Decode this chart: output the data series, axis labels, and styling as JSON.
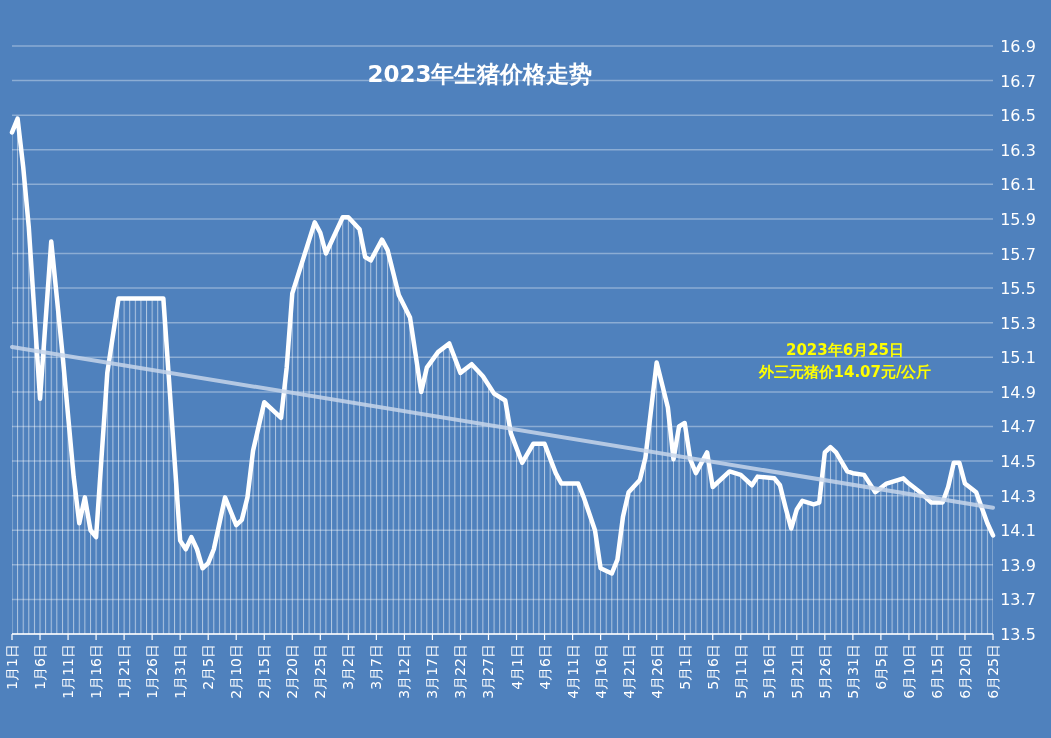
{
  "chart_data": {
    "type": "line",
    "title": "2023年生猪价格走势",
    "xlim": [
      "2023-01-01",
      "2023-06-25"
    ],
    "xticks": [
      {
        "value": "2023-01-01",
        "label": "1月1日"
      },
      {
        "value": "2023-01-06",
        "label": "1月6日"
      },
      {
        "value": "2023-01-11",
        "label": "1月11日"
      },
      {
        "value": "2023-01-16",
        "label": "1月16日"
      },
      {
        "value": "2023-01-21",
        "label": "1月21日"
      },
      {
        "value": "2023-01-26",
        "label": "1月26日"
      },
      {
        "value": "2023-01-31",
        "label": "1月31日"
      },
      {
        "value": "2023-02-05",
        "label": "2月5日"
      },
      {
        "value": "2023-02-10",
        "label": "2月10日"
      },
      {
        "value": "2023-02-15",
        "label": "2月15日"
      },
      {
        "value": "2023-02-20",
        "label": "2月20日"
      },
      {
        "value": "2023-02-25",
        "label": "2月25日"
      },
      {
        "value": "2023-03-02",
        "label": "3月2日"
      },
      {
        "value": "2023-03-07",
        "label": "3月7日"
      },
      {
        "value": "2023-03-12",
        "label": "3月12日"
      },
      {
        "value": "2023-03-17",
        "label": "3月17日"
      },
      {
        "value": "2023-03-22",
        "label": "3月22日"
      },
      {
        "value": "2023-03-27",
        "label": "3月27日"
      },
      {
        "value": "2023-04-01",
        "label": "4月1日"
      },
      {
        "value": "2023-04-06",
        "label": "4月6日"
      },
      {
        "value": "2023-04-11",
        "label": "4月11日"
      },
      {
        "value": "2023-04-16",
        "label": "4月16日"
      },
      {
        "value": "2023-04-21",
        "label": "4月21日"
      },
      {
        "value": "2023-04-26",
        "label": "4月26日"
      },
      {
        "value": "2023-05-01",
        "label": "5月1日"
      },
      {
        "value": "2023-05-06",
        "label": "5月6日"
      },
      {
        "value": "2023-05-11",
        "label": "5月11日"
      },
      {
        "value": "2023-05-16",
        "label": "5月16日"
      },
      {
        "value": "2023-05-21",
        "label": "5月21日"
      },
      {
        "value": "2023-05-26",
        "label": "5月26日"
      },
      {
        "value": "2023-05-31",
        "label": "5月31日"
      },
      {
        "value": "2023-06-05",
        "label": "6月5日"
      },
      {
        "value": "2023-06-10",
        "label": "6月10日"
      },
      {
        "value": "2023-06-15",
        "label": "6月15日"
      },
      {
        "value": "2023-06-20",
        "label": "6月20日"
      },
      {
        "value": "2023-06-25",
        "label": "6月25日"
      }
    ],
    "ylim": [
      13.5,
      16.9
    ],
    "yticks": [
      13.5,
      13.7,
      13.9,
      14.1,
      14.3,
      14.5,
      14.7,
      14.9,
      15.1,
      15.3,
      15.5,
      15.7,
      15.9,
      16.1,
      16.3,
      16.5,
      16.7,
      16.9
    ],
    "grid": "y",
    "series": [
      {
        "type": "area",
        "color": "#ffffff",
        "x": [
          "2023-01-01",
          "2023-01-02",
          "2023-01-03",
          "2023-01-04",
          "2023-01-06",
          "2023-01-08",
          "2023-01-10",
          "2023-01-12",
          "2023-01-13",
          "2023-01-14",
          "2023-01-15",
          "2023-01-16",
          "2023-01-18",
          "2023-01-20",
          "2023-01-28",
          "2023-01-31",
          "2023-02-01",
          "2023-02-02",
          "2023-02-03",
          "2023-02-04",
          "2023-02-05",
          "2023-02-06",
          "2023-02-08",
          "2023-02-10",
          "2023-02-11",
          "2023-02-12",
          "2023-02-13",
          "2023-02-15",
          "2023-02-18",
          "2023-02-19",
          "2023-02-20",
          "2023-02-24",
          "2023-02-25",
          "2023-02-26",
          "2023-03-01",
          "2023-03-02",
          "2023-03-04",
          "2023-03-05",
          "2023-03-06",
          "2023-03-08",
          "2023-03-09",
          "2023-03-11",
          "2023-03-13",
          "2023-03-15",
          "2023-03-16",
          "2023-03-18",
          "2023-03-20",
          "2023-03-22",
          "2023-03-24",
          "2023-03-26",
          "2023-03-28",
          "2023-03-30",
          "2023-03-31",
          "2023-04-02",
          "2023-04-04",
          "2023-04-06",
          "2023-04-08",
          "2023-04-09",
          "2023-04-12",
          "2023-04-13",
          "2023-04-15",
          "2023-04-16",
          "2023-04-18",
          "2023-04-19",
          "2023-04-20",
          "2023-04-21",
          "2023-04-23",
          "2023-04-24",
          "2023-04-26",
          "2023-04-28",
          "2023-04-29",
          "2023-04-30",
          "2023-05-01",
          "2023-05-02",
          "2023-05-03",
          "2023-05-05",
          "2023-05-06",
          "2023-05-09",
          "2023-05-11",
          "2023-05-13",
          "2023-05-14",
          "2023-05-17",
          "2023-05-18",
          "2023-05-19",
          "2023-05-20",
          "2023-05-21",
          "2023-05-22",
          "2023-05-24",
          "2023-05-25",
          "2023-05-26",
          "2023-05-27",
          "2023-05-28",
          "2023-05-30",
          "2023-05-31",
          "2023-06-02",
          "2023-06-04",
          "2023-06-06",
          "2023-06-08",
          "2023-06-09",
          "2023-06-10",
          "2023-06-12",
          "2023-06-14",
          "2023-06-16",
          "2023-06-17",
          "2023-06-18",
          "2023-06-19",
          "2023-06-20",
          "2023-06-22",
          "2023-06-24",
          "2023-06-25"
        ],
        "values": [
          16.4,
          16.48,
          16.2,
          15.85,
          14.86,
          15.77,
          15.12,
          14.41,
          14.14,
          14.29,
          14.1,
          14.06,
          15.01,
          15.44,
          15.44,
          14.04,
          13.99,
          14.06,
          13.99,
          13.88,
          13.91,
          13.99,
          14.29,
          14.13,
          14.16,
          14.29,
          14.56,
          14.84,
          14.75,
          15.04,
          15.47,
          15.88,
          15.82,
          15.7,
          15.91,
          15.91,
          15.84,
          15.68,
          15.66,
          15.78,
          15.72,
          15.46,
          15.33,
          14.9,
          15.04,
          15.13,
          15.18,
          15.01,
          15.06,
          14.99,
          14.89,
          14.85,
          14.66,
          14.49,
          14.6,
          14.6,
          14.43,
          14.37,
          14.37,
          14.29,
          14.1,
          13.88,
          13.85,
          13.93,
          14.18,
          14.32,
          14.39,
          14.52,
          15.07,
          14.81,
          14.51,
          14.7,
          14.72,
          14.51,
          14.43,
          14.55,
          14.35,
          14.44,
          14.42,
          14.36,
          14.41,
          14.4,
          14.36,
          14.23,
          14.11,
          14.22,
          14.27,
          14.25,
          14.26,
          14.55,
          14.58,
          14.55,
          14.44,
          14.43,
          14.42,
          14.32,
          14.37,
          14.39,
          14.4,
          14.37,
          14.32,
          14.26,
          14.26,
          14.35,
          14.49,
          14.49,
          14.37,
          14.32,
          14.14,
          14.07
        ]
      },
      {
        "color": "#c6d5ea",
        "x": [
          "2023-01-01",
          "2023-06-25"
        ],
        "values": [
          15.16,
          14.23
        ]
      }
    ],
    "annotations": [
      "2023年6月25日",
      "外三元猪价14.07元/公斤"
    ]
  }
}
